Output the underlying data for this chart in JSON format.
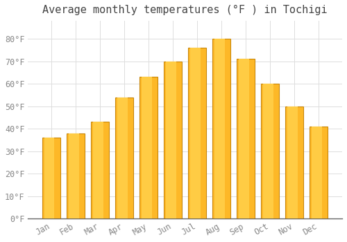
{
  "title": "Average monthly temperatures (°F ) in Tochigi",
  "months": [
    "Jan",
    "Feb",
    "Mar",
    "Apr",
    "May",
    "Jun",
    "Jul",
    "Aug",
    "Sep",
    "Oct",
    "Nov",
    "Dec"
  ],
  "values": [
    36,
    38,
    43,
    54,
    63,
    70,
    76,
    80,
    71,
    60,
    50,
    41
  ],
  "bar_color": "#FDB827",
  "bar_edge_color": "#C8860A",
  "background_color": "#FFFFFF",
  "grid_color": "#DDDDDD",
  "ylim": [
    0,
    88
  ],
  "yticks": [
    0,
    10,
    20,
    30,
    40,
    50,
    60,
    70,
    80
  ],
  "title_fontsize": 11,
  "tick_fontsize": 8.5,
  "tick_color": "#888888"
}
